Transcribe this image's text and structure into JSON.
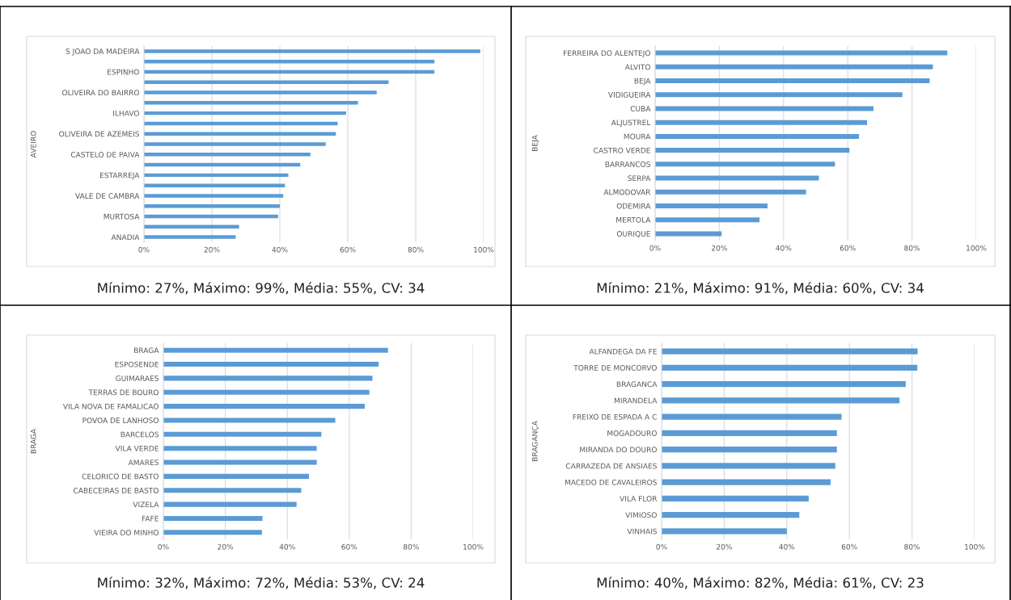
{
  "chart_data": [
    {
      "type": "bar",
      "orientation": "horizontal",
      "ylabel": "AVEIRO",
      "color": "#5b9bd5",
      "grid": "x",
      "legend": false,
      "categories": [
        "S JOAO DA MADEIRA",
        null,
        "ESPINHO",
        null,
        "OLIVEIRA DO BAIRRO",
        null,
        "ILHAVO",
        null,
        "OLIVEIRA DE AZEMEIS",
        null,
        "CASTELO DE PAIVA",
        null,
        "ESTARREJA",
        null,
        "VALE DE CAMBRA",
        null,
        "MURTOSA",
        null,
        "ANADIA"
      ],
      "values": [
        99,
        85.5,
        85.5,
        72,
        68.5,
        63,
        59.5,
        57,
        56.5,
        53.5,
        49,
        46,
        42.5,
        41.5,
        41,
        40,
        39.5,
        28,
        27
      ],
      "xlim": [
        0,
        100
      ],
      "xticks": [
        {
          "value": 0,
          "label": "0%"
        },
        {
          "value": 20,
          "label": "20%"
        },
        {
          "value": 40,
          "label": "40%"
        },
        {
          "value": 60,
          "label": "60%"
        },
        {
          "value": 80,
          "label": "80%"
        },
        {
          "value": 100,
          "label": "100%"
        }
      ],
      "annotations": [
        "Mínimo: 27%, Máximo: 99%, Média: 55%, CV: 34"
      ]
    },
    {
      "type": "bar",
      "orientation": "horizontal",
      "ylabel": "BEJA",
      "color": "#5b9bd5",
      "grid": "x",
      "legend": false,
      "categories": [
        "FERREIRA DO ALENTEJO",
        "ALVITO",
        "BEJA",
        "VIDIGUEIRA",
        "CUBA",
        "ALJUSTREL",
        "MOURA",
        "CASTRO VERDE",
        "BARRANCOS",
        "SERPA",
        "ALMODOVAR",
        "ODEMIRA",
        "MERTOLA",
        "OURIQUE"
      ],
      "values": [
        91,
        86.5,
        85.5,
        77,
        68,
        66,
        63.5,
        60.5,
        56,
        51,
        47,
        35,
        32.5,
        20.7
      ],
      "xlim": [
        0,
        100
      ],
      "xticks": [
        {
          "value": 0,
          "label": "0%"
        },
        {
          "value": 20,
          "label": "20%"
        },
        {
          "value": 40,
          "label": "40%"
        },
        {
          "value": 60,
          "label": "60%"
        },
        {
          "value": 80,
          "label": "80%"
        },
        {
          "value": 100,
          "label": "100%"
        }
      ],
      "annotations": [
        "Mínimo: 21%, Máximo: 91%, Média: 60%, CV: 34"
      ]
    },
    {
      "type": "bar",
      "orientation": "horizontal",
      "ylabel": "BRAGA",
      "color": "#5b9bd5",
      "grid": "x",
      "legend": false,
      "categories": [
        "BRAGA",
        "ESPOSENDE",
        "GUIMARAES",
        "TERRAS DE BOURO",
        "VILA NOVA DE FAMALICAO",
        "POVOA DE LANHOSO",
        "BARCELOS",
        "VILA VERDE",
        "AMARES",
        "CELORICO DE BASTO",
        "CABECEIRAS DE BASTO",
        "VIZELA",
        "FAFE",
        "VIEIRA DO MINHO"
      ],
      "values": [
        72.5,
        69.5,
        67.5,
        66.5,
        65,
        55.5,
        51,
        49.5,
        49.5,
        47,
        44.5,
        43,
        32,
        31.8
      ],
      "xlim": [
        0,
        100
      ],
      "xticks": [
        {
          "value": 0,
          "label": "0%"
        },
        {
          "value": 20,
          "label": "20%"
        },
        {
          "value": 40,
          "label": "40%"
        },
        {
          "value": 60,
          "label": "60%"
        },
        {
          "value": 80,
          "label": "80%"
        },
        {
          "value": 100,
          "label": "100%"
        }
      ],
      "annotations": [
        "Mínimo: 32%, Máximo: 72%, Média: 53%, CV: 24"
      ]
    },
    {
      "type": "bar",
      "orientation": "horizontal",
      "ylabel": "BRAGANÇA",
      "color": "#5b9bd5",
      "grid": "x",
      "legend": false,
      "categories": [
        "ALFANDEGA DA FE",
        "TORRE DE MONCORVO",
        "BRAGANCA",
        "MIRANDELA",
        "FREIXO DE ESPADA A C",
        "MOGADOURO",
        "MIRANDA DO DOURO",
        "CARRAZEDA DE ANSIAES",
        "MACEDO DE CAVALEIROS",
        "VILA FLOR",
        "VIMIOSO",
        "VINHAIS"
      ],
      "values": [
        81.8,
        81.7,
        78,
        76,
        57.5,
        56,
        56,
        55.5,
        54,
        47,
        44,
        40
      ],
      "xlim": [
        0,
        100
      ],
      "xticks": [
        {
          "value": 0,
          "label": "0%"
        },
        {
          "value": 20,
          "label": "20%"
        },
        {
          "value": 40,
          "label": "40%"
        },
        {
          "value": 60,
          "label": "60%"
        },
        {
          "value": 80,
          "label": "80%"
        },
        {
          "value": 100,
          "label": "100%"
        }
      ],
      "annotations": [
        "Mínimo: 40%, Máximo: 82%, Média: 61%, CV: 23"
      ]
    }
  ]
}
